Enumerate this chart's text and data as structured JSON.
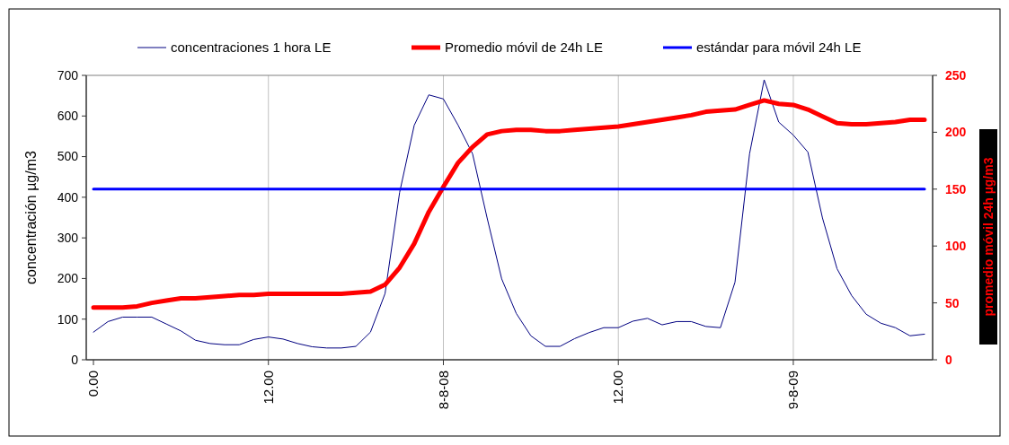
{
  "chart_data": {
    "type": "line",
    "ylabel": "concentración µg/m3",
    "y2label": "promedio móvil 24h µg/m3",
    "categories": [
      "0.00",
      null,
      null,
      null,
      null,
      null,
      null,
      null,
      null,
      null,
      null,
      null,
      "12.00",
      null,
      null,
      null,
      null,
      null,
      null,
      null,
      null,
      null,
      null,
      null,
      "8-8-08",
      null,
      null,
      null,
      null,
      null,
      null,
      null,
      null,
      null,
      null,
      null,
      "12.00",
      null,
      null,
      null,
      null,
      null,
      null,
      null,
      null,
      null,
      null,
      null,
      "9-8-09",
      null,
      null,
      null,
      null,
      null,
      null,
      null,
      null,
      null
    ],
    "series": [
      {
        "name": "concentraciones 1 hora LE",
        "color": "#000080",
        "values": [
          68,
          94,
          105,
          105,
          105,
          88,
          71,
          48,
          40,
          37,
          37,
          50,
          56,
          51,
          40,
          32,
          29,
          29,
          33,
          68,
          163,
          412,
          577,
          652,
          642,
          578,
          507,
          349,
          199,
          114,
          59,
          33,
          33,
          52,
          67,
          79,
          79,
          95,
          102,
          86,
          94,
          94,
          82,
          79,
          191,
          507,
          689,
          585,
          553,
          511,
          349,
          224,
          158,
          112,
          90,
          79,
          59,
          63
        ]
      },
      {
        "name": "Promedio móvil de 24h LE",
        "color": "#ff0000",
        "axis": "y2",
        "values": [
          46,
          46,
          46,
          47,
          50,
          52,
          54,
          54,
          55,
          56,
          57,
          57,
          58,
          58,
          58,
          58,
          58,
          58,
          59,
          60,
          66,
          81,
          102,
          130,
          152,
          173,
          187,
          198,
          201,
          202,
          202,
          201,
          201,
          202,
          203,
          204,
          205,
          207,
          209,
          211,
          213,
          215,
          218,
          219,
          220,
          224,
          228,
          225,
          224,
          220,
          214,
          208,
          207,
          207,
          208,
          209,
          211,
          211
        ]
      },
      {
        "name": "estándar para móvil 24h LE",
        "color": "#0000ff",
        "axis": "y2",
        "values": [
          150,
          150,
          150,
          150,
          150,
          150,
          150,
          150,
          150,
          150,
          150,
          150,
          150,
          150,
          150,
          150,
          150,
          150,
          150,
          150,
          150,
          150,
          150,
          150,
          150,
          150,
          150,
          150,
          150,
          150,
          150,
          150,
          150,
          150,
          150,
          150,
          150,
          150,
          150,
          150,
          150,
          150,
          150,
          150,
          150,
          150,
          150,
          150,
          150,
          150,
          150,
          150,
          150,
          150,
          150,
          150,
          150,
          150
        ]
      }
    ],
    "ylim": [
      0,
      700
    ],
    "yticks": [
      0,
      100,
      200,
      300,
      400,
      500,
      600,
      700
    ],
    "y2lim": [
      0,
      250
    ],
    "y2ticks": [
      0,
      50,
      100,
      150,
      200,
      250
    ],
    "grid": "x",
    "legend": "top",
    "marker": "none",
    "line_style": "solid"
  }
}
